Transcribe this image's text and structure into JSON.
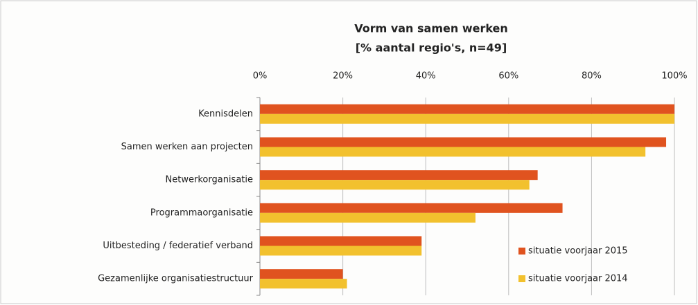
{
  "chart_data": {
    "type": "barh",
    "title": "Vorm van samen werken",
    "subtitle": "[% aantal regio's, n=49]",
    "categories": [
      "Kennisdelen",
      "Samen werken aan projecten",
      "Netwerkorganisatie",
      "Programmaorganisatie",
      "Uitbesteding / federatief verband",
      "Gezamenlijke organisatiestructuur"
    ],
    "series": [
      {
        "name": "situatie voorjaar 2015",
        "color": "#e0531f",
        "values": [
          100,
          98,
          67,
          73,
          39,
          20
        ]
      },
      {
        "name": "situatie voorjaar 2014",
        "color": "#f2c12e",
        "values": [
          100,
          93,
          65,
          52,
          39,
          21
        ]
      }
    ],
    "xlim": [
      0,
      100
    ],
    "xticks": [
      {
        "value": 0,
        "label": "0%"
      },
      {
        "value": 20,
        "label": "20%"
      },
      {
        "value": 40,
        "label": "40%"
      },
      {
        "value": 60,
        "label": "60%"
      },
      {
        "value": 80,
        "label": "80%"
      },
      {
        "value": 100,
        "label": "100%"
      }
    ],
    "grid": true,
    "legend": "lower right"
  }
}
